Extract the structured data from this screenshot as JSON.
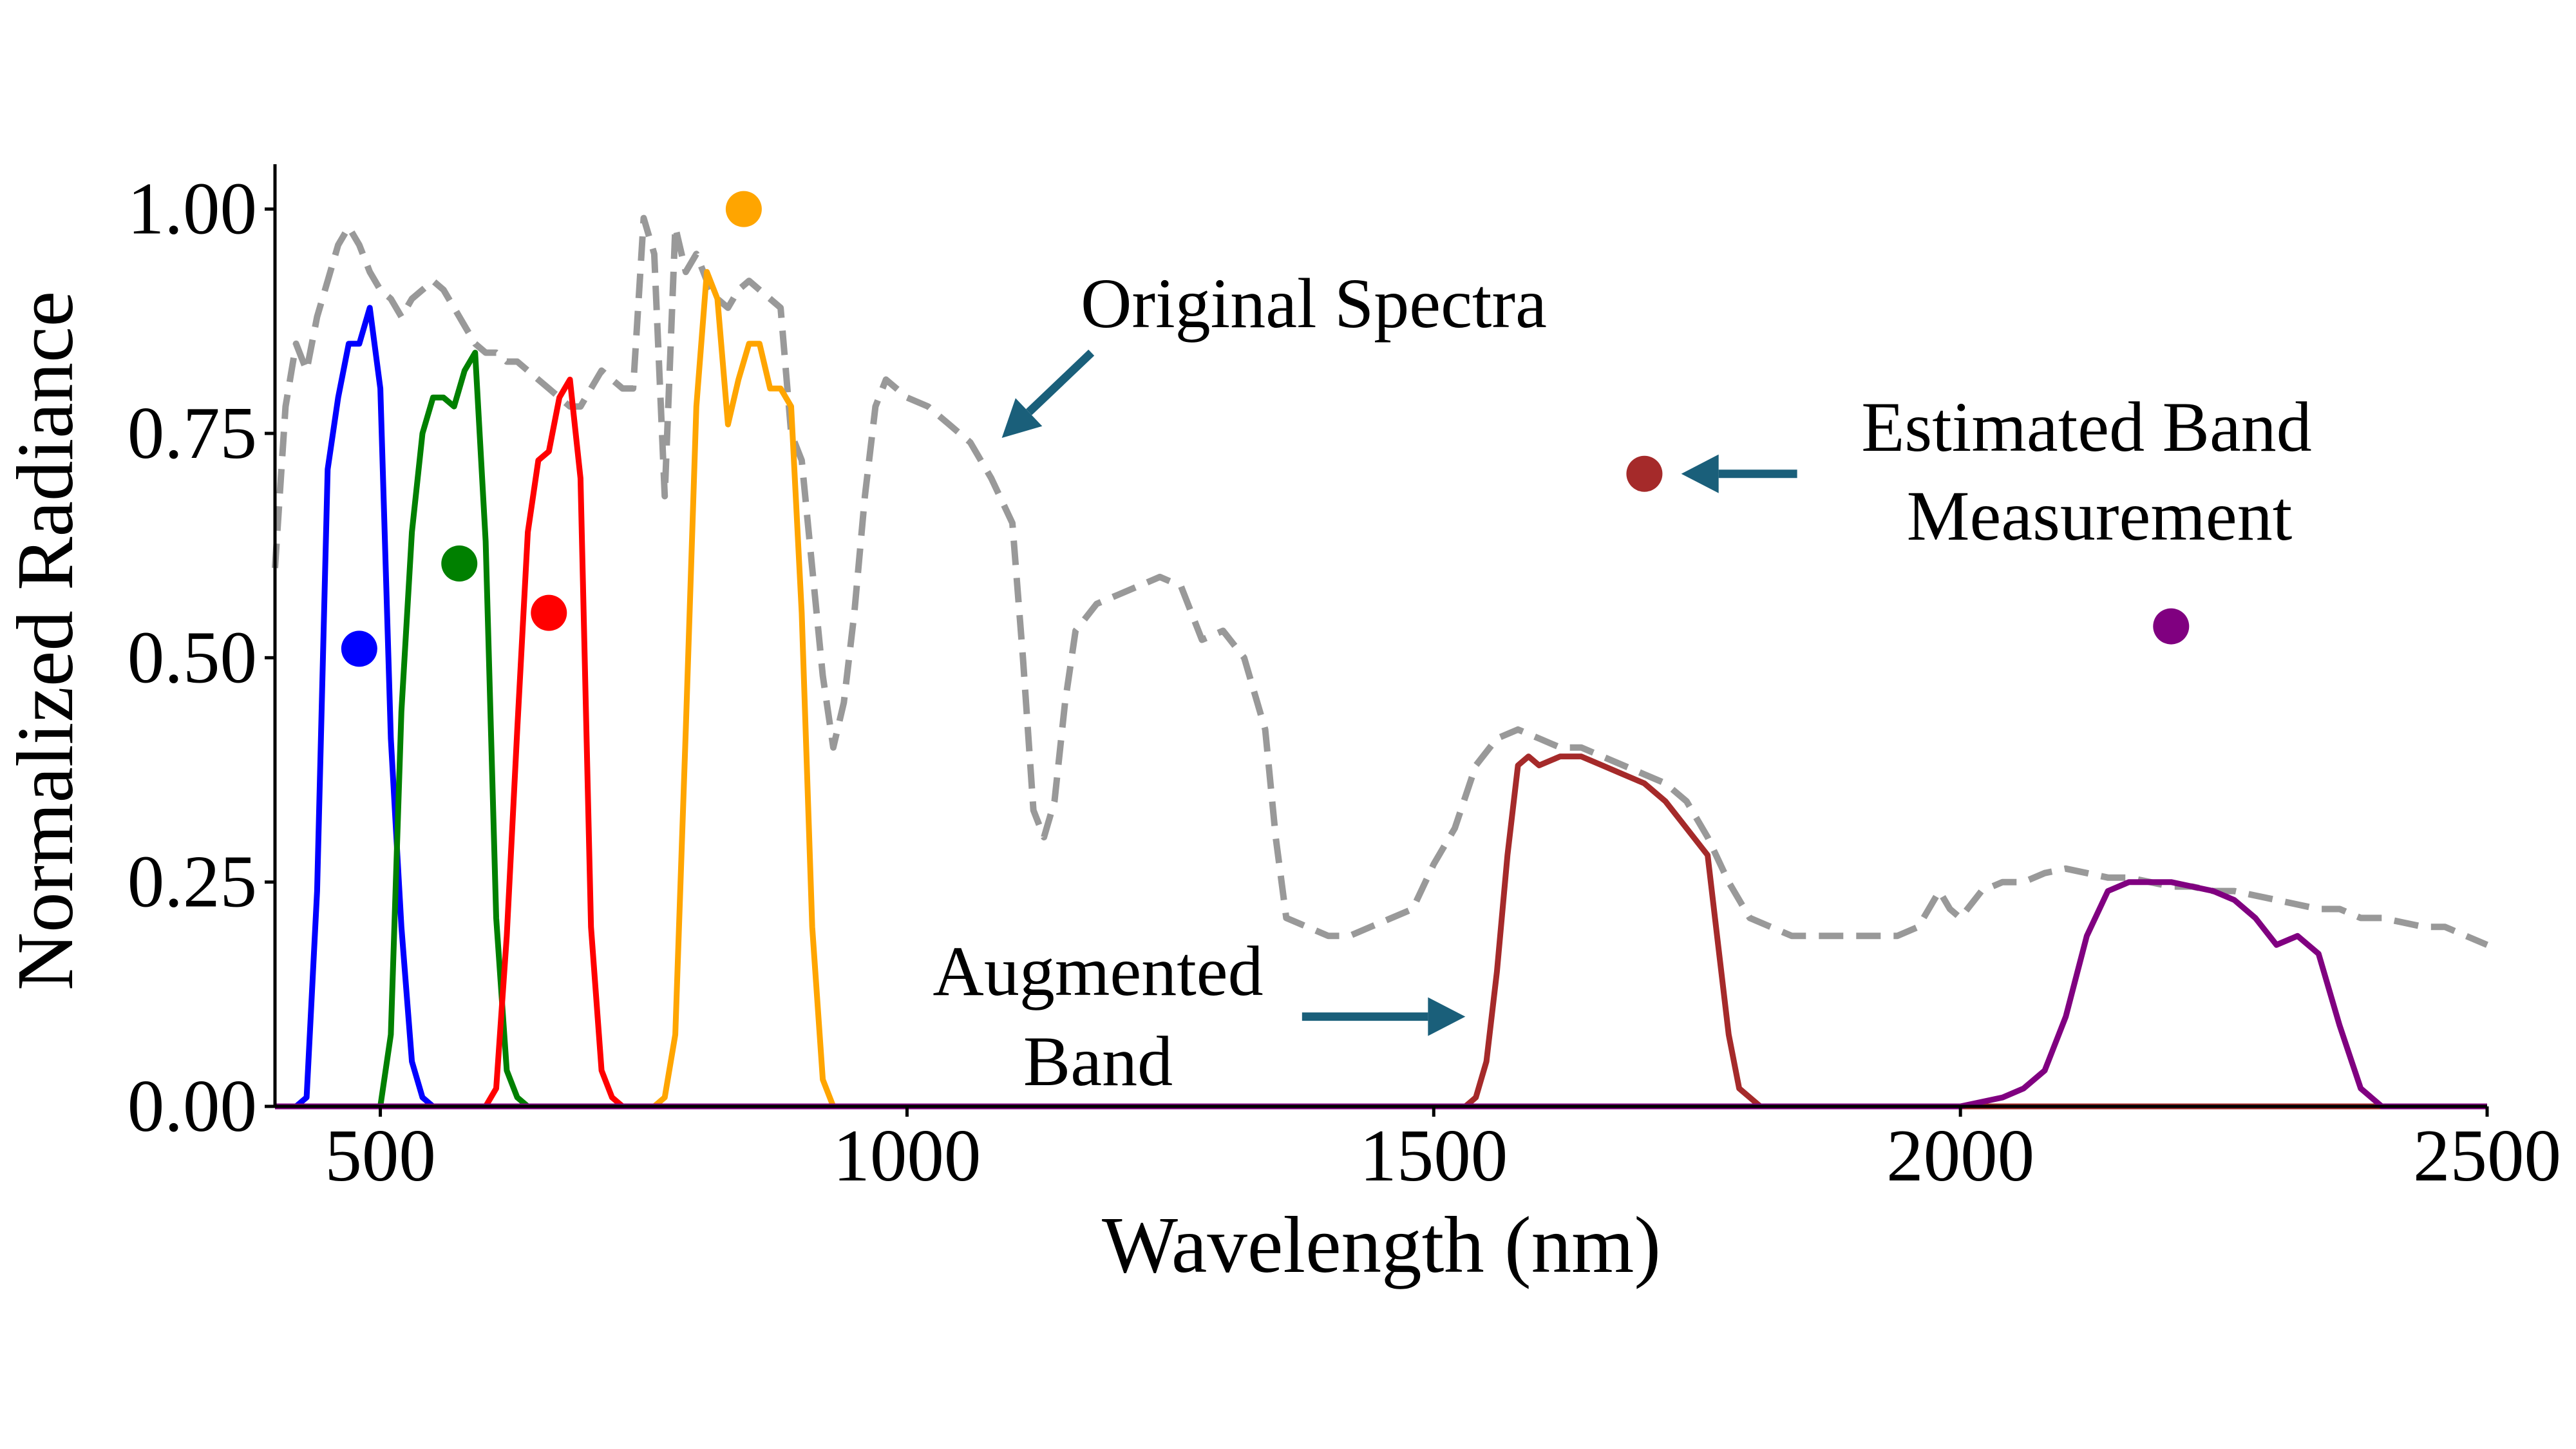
{
  "chart_data": {
    "type": "line",
    "xlabel": "Wavelength (nm)",
    "ylabel": "Normalized Radiance",
    "xlim": [
      400,
      2500
    ],
    "ylim": [
      0,
      1.05
    ],
    "xticks": [
      500,
      1000,
      1500,
      2000,
      2500
    ],
    "xtick_labels": [
      "500",
      "1000",
      "1500",
      "2000",
      "2500"
    ],
    "yticks": [
      0,
      0.25,
      0.5,
      0.75,
      1.0
    ],
    "ytick_labels": [
      "0.00",
      "0.25",
      "0.50",
      "0.75",
      "1.00"
    ],
    "grid": false,
    "series": [
      {
        "name": "Original Spectra",
        "color": "#999999",
        "style": "dashed",
        "points": [
          [
            400,
            0.6
          ],
          [
            410,
            0.78
          ],
          [
            420,
            0.85
          ],
          [
            430,
            0.82
          ],
          [
            440,
            0.88
          ],
          [
            450,
            0.92
          ],
          [
            460,
            0.96
          ],
          [
            470,
            0.98
          ],
          [
            480,
            0.96
          ],
          [
            490,
            0.93
          ],
          [
            500,
            0.91
          ],
          [
            510,
            0.9
          ],
          [
            520,
            0.88
          ],
          [
            530,
            0.9
          ],
          [
            540,
            0.91
          ],
          [
            550,
            0.92
          ],
          [
            560,
            0.91
          ],
          [
            570,
            0.89
          ],
          [
            580,
            0.87
          ],
          [
            590,
            0.85
          ],
          [
            600,
            0.84
          ],
          [
            610,
            0.84
          ],
          [
            620,
            0.83
          ],
          [
            630,
            0.83
          ],
          [
            640,
            0.82
          ],
          [
            650,
            0.81
          ],
          [
            660,
            0.8
          ],
          [
            670,
            0.79
          ],
          [
            680,
            0.78
          ],
          [
            690,
            0.78
          ],
          [
            700,
            0.8
          ],
          [
            710,
            0.82
          ],
          [
            720,
            0.81
          ],
          [
            730,
            0.8
          ],
          [
            740,
            0.8
          ],
          [
            750,
            0.99
          ],
          [
            760,
            0.95
          ],
          [
            770,
            0.68
          ],
          [
            780,
            0.98
          ],
          [
            790,
            0.93
          ],
          [
            800,
            0.95
          ],
          [
            810,
            0.92
          ],
          [
            820,
            0.9
          ],
          [
            830,
            0.89
          ],
          [
            840,
            0.91
          ],
          [
            850,
            0.92
          ],
          [
            860,
            0.91
          ],
          [
            870,
            0.9
          ],
          [
            880,
            0.89
          ],
          [
            890,
            0.75
          ],
          [
            900,
            0.72
          ],
          [
            910,
            0.6
          ],
          [
            920,
            0.48
          ],
          [
            930,
            0.4
          ],
          [
            940,
            0.45
          ],
          [
            950,
            0.55
          ],
          [
            960,
            0.68
          ],
          [
            970,
            0.78
          ],
          [
            980,
            0.81
          ],
          [
            990,
            0.8
          ],
          [
            1000,
            0.79
          ],
          [
            1020,
            0.78
          ],
          [
            1040,
            0.76
          ],
          [
            1060,
            0.74
          ],
          [
            1080,
            0.7
          ],
          [
            1100,
            0.65
          ],
          [
            1110,
            0.5
          ],
          [
            1120,
            0.33
          ],
          [
            1130,
            0.3
          ],
          [
            1140,
            0.34
          ],
          [
            1150,
            0.45
          ],
          [
            1160,
            0.53
          ],
          [
            1180,
            0.56
          ],
          [
            1200,
            0.57
          ],
          [
            1220,
            0.58
          ],
          [
            1240,
            0.59
          ],
          [
            1260,
            0.58
          ],
          [
            1280,
            0.52
          ],
          [
            1300,
            0.53
          ],
          [
            1320,
            0.5
          ],
          [
            1340,
            0.42
          ],
          [
            1350,
            0.3
          ],
          [
            1360,
            0.21
          ],
          [
            1380,
            0.2
          ],
          [
            1400,
            0.19
          ],
          [
            1420,
            0.19
          ],
          [
            1440,
            0.2
          ],
          [
            1460,
            0.21
          ],
          [
            1480,
            0.22
          ],
          [
            1500,
            0.27
          ],
          [
            1520,
            0.31
          ],
          [
            1540,
            0.38
          ],
          [
            1560,
            0.41
          ],
          [
            1580,
            0.42
          ],
          [
            1600,
            0.41
          ],
          [
            1620,
            0.4
          ],
          [
            1640,
            0.4
          ],
          [
            1660,
            0.39
          ],
          [
            1680,
            0.38
          ],
          [
            1700,
            0.37
          ],
          [
            1720,
            0.36
          ],
          [
            1740,
            0.34
          ],
          [
            1760,
            0.3
          ],
          [
            1780,
            0.25
          ],
          [
            1800,
            0.21
          ],
          [
            1820,
            0.2
          ],
          [
            1840,
            0.19
          ],
          [
            1860,
            0.19
          ],
          [
            1880,
            0.19
          ],
          [
            1900,
            0.19
          ],
          [
            1920,
            0.19
          ],
          [
            1940,
            0.19
          ],
          [
            1960,
            0.2
          ],
          [
            1980,
            0.24
          ],
          [
            1990,
            0.22
          ],
          [
            2000,
            0.21
          ],
          [
            2020,
            0.24
          ],
          [
            2040,
            0.25
          ],
          [
            2060,
            0.25
          ],
          [
            2080,
            0.26
          ],
          [
            2100,
            0.265
          ],
          [
            2120,
            0.26
          ],
          [
            2140,
            0.255
          ],
          [
            2160,
            0.255
          ],
          [
            2180,
            0.25
          ],
          [
            2200,
            0.245
          ],
          [
            2220,
            0.245
          ],
          [
            2240,
            0.24
          ],
          [
            2260,
            0.24
          ],
          [
            2280,
            0.235
          ],
          [
            2300,
            0.23
          ],
          [
            2320,
            0.225
          ],
          [
            2340,
            0.22
          ],
          [
            2360,
            0.22
          ],
          [
            2380,
            0.21
          ],
          [
            2400,
            0.21
          ],
          [
            2420,
            0.205
          ],
          [
            2440,
            0.2
          ],
          [
            2460,
            0.2
          ],
          [
            2480,
            0.19
          ],
          [
            2500,
            0.18
          ]
        ]
      },
      {
        "name": "Blue band",
        "color": "#0000ff",
        "style": "solid",
        "points": [
          [
            420,
            0.0
          ],
          [
            430,
            0.01
          ],
          [
            440,
            0.24
          ],
          [
            450,
            0.71
          ],
          [
            460,
            0.79
          ],
          [
            470,
            0.85
          ],
          [
            480,
            0.85
          ],
          [
            490,
            0.89
          ],
          [
            500,
            0.8
          ],
          [
            510,
            0.41
          ],
          [
            520,
            0.2
          ],
          [
            530,
            0.05
          ],
          [
            540,
            0.01
          ],
          [
            550,
            0.0
          ]
        ]
      },
      {
        "name": "Green band",
        "color": "#008000",
        "style": "solid",
        "points": [
          [
            500,
            0.0
          ],
          [
            510,
            0.08
          ],
          [
            520,
            0.44
          ],
          [
            530,
            0.64
          ],
          [
            540,
            0.75
          ],
          [
            550,
            0.79
          ],
          [
            560,
            0.79
          ],
          [
            570,
            0.78
          ],
          [
            580,
            0.82
          ],
          [
            590,
            0.84
          ],
          [
            600,
            0.63
          ],
          [
            610,
            0.21
          ],
          [
            620,
            0.04
          ],
          [
            630,
            0.01
          ],
          [
            640,
            0.0
          ]
        ]
      },
      {
        "name": "Red band",
        "color": "#ff0000",
        "style": "solid",
        "points": [
          [
            600,
            0.0
          ],
          [
            610,
            0.02
          ],
          [
            620,
            0.19
          ],
          [
            630,
            0.42
          ],
          [
            640,
            0.64
          ],
          [
            650,
            0.72
          ],
          [
            660,
            0.73
          ],
          [
            670,
            0.79
          ],
          [
            680,
            0.81
          ],
          [
            690,
            0.7
          ],
          [
            700,
            0.2
          ],
          [
            710,
            0.04
          ],
          [
            720,
            0.01
          ],
          [
            730,
            0.0
          ]
        ]
      },
      {
        "name": "NIR band",
        "color": "#ffa500",
        "style": "solid",
        "points": [
          [
            760,
            0.0
          ],
          [
            770,
            0.01
          ],
          [
            780,
            0.08
          ],
          [
            790,
            0.42
          ],
          [
            800,
            0.78
          ],
          [
            810,
            0.93
          ],
          [
            820,
            0.9
          ],
          [
            830,
            0.76
          ],
          [
            840,
            0.81
          ],
          [
            850,
            0.85
          ],
          [
            860,
            0.85
          ],
          [
            870,
            0.8
          ],
          [
            880,
            0.8
          ],
          [
            890,
            0.78
          ],
          [
            900,
            0.55
          ],
          [
            910,
            0.2
          ],
          [
            920,
            0.03
          ],
          [
            930,
            0.0
          ]
        ]
      },
      {
        "name": "SWIR1 band",
        "color": "#a52a2a",
        "style": "solid",
        "points": [
          [
            400,
            0.0
          ],
          [
            1530,
            0.0
          ],
          [
            1540,
            0.01
          ],
          [
            1550,
            0.05
          ],
          [
            1560,
            0.15
          ],
          [
            1570,
            0.28
          ],
          [
            1580,
            0.38
          ],
          [
            1590,
            0.39
          ],
          [
            1600,
            0.38
          ],
          [
            1620,
            0.39
          ],
          [
            1640,
            0.39
          ],
          [
            1660,
            0.38
          ],
          [
            1680,
            0.37
          ],
          [
            1700,
            0.36
          ],
          [
            1720,
            0.34
          ],
          [
            1740,
            0.31
          ],
          [
            1760,
            0.28
          ],
          [
            1770,
            0.18
          ],
          [
            1780,
            0.08
          ],
          [
            1790,
            0.02
          ],
          [
            1810,
            0.0
          ],
          [
            2500,
            0.0
          ]
        ]
      },
      {
        "name": "SWIR2 band",
        "color": "#800080",
        "style": "solid",
        "points": [
          [
            400,
            0.0
          ],
          [
            2000,
            0.0
          ],
          [
            2040,
            0.01
          ],
          [
            2060,
            0.02
          ],
          [
            2080,
            0.04
          ],
          [
            2100,
            0.1
          ],
          [
            2120,
            0.19
          ],
          [
            2140,
            0.24
          ],
          [
            2160,
            0.25
          ],
          [
            2180,
            0.25
          ],
          [
            2200,
            0.25
          ],
          [
            2220,
            0.245
          ],
          [
            2240,
            0.24
          ],
          [
            2260,
            0.23
          ],
          [
            2280,
            0.21
          ],
          [
            2300,
            0.18
          ],
          [
            2320,
            0.19
          ],
          [
            2340,
            0.17
          ],
          [
            2360,
            0.09
          ],
          [
            2380,
            0.02
          ],
          [
            2400,
            0.0
          ],
          [
            2500,
            0.0
          ]
        ]
      }
    ],
    "points": [
      {
        "name": "Blue estimate",
        "x": 480,
        "y": 0.51,
        "color": "#0000ff"
      },
      {
        "name": "Green estimate",
        "x": 575,
        "y": 0.605,
        "color": "#008000"
      },
      {
        "name": "Red estimate",
        "x": 660,
        "y": 0.55,
        "color": "#ff0000"
      },
      {
        "name": "NIR estimate",
        "x": 845,
        "y": 1.0,
        "color": "#ffa500"
      },
      {
        "name": "SWIR1 estimate",
        "x": 1700,
        "y": 0.705,
        "color": "#a52a2a"
      },
      {
        "name": "SWIR2 estimate",
        "x": 2200,
        "y": 0.535,
        "color": "#800080"
      }
    ],
    "annotations": [
      {
        "id": "original",
        "lines": [
          "Original Spectra"
        ],
        "x": 1175,
        "y": 0.895,
        "arrow_color": "#1a5f7a"
      },
      {
        "id": "estimated",
        "lines": [
          "Estimated Band",
          "Measurement"
        ],
        "x": 2120,
        "y": 0.705,
        "arrow_color": "#1a5f7a"
      },
      {
        "id": "augmented",
        "lines": [
          "Augmented",
          "Band"
        ],
        "x": 1575,
        "y": 0.09,
        "arrow_color": "#1a5f7a"
      }
    ]
  }
}
